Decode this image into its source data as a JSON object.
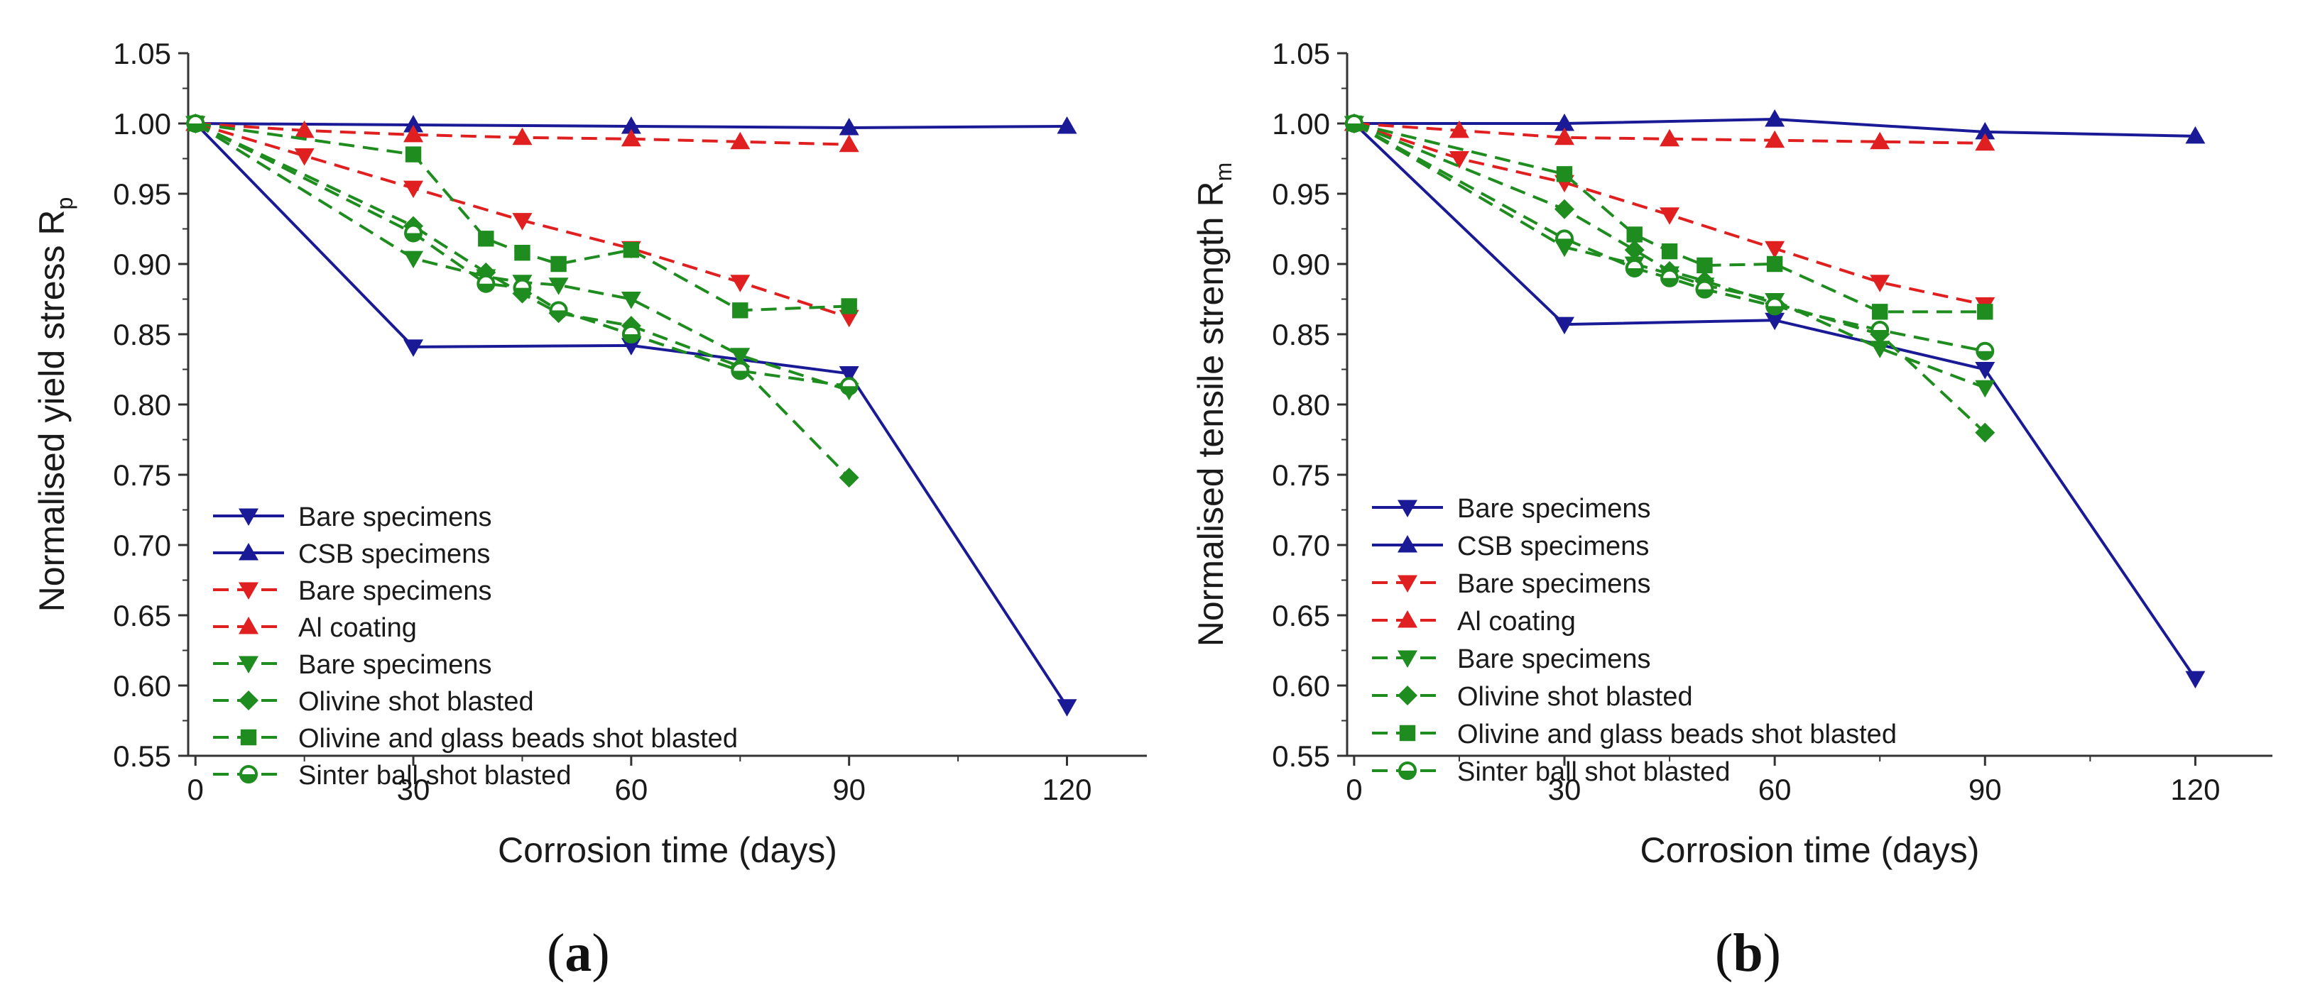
{
  "figure": {
    "panel_labels": [
      {
        "open": "(",
        "letter": "a",
        "close": ")"
      },
      {
        "open": "(",
        "letter": "b",
        "close": ")"
      }
    ]
  },
  "colors": {
    "blue": "#1a1a96",
    "red": "#e02020",
    "green": "#1e8c1e",
    "axis": "#333333"
  },
  "chart_data": [
    {
      "type": "line",
      "xlabel": "Corrosion time (days)",
      "ylabel": "Normalised yield stress R",
      "ylabel_sub": "p",
      "xlim": [
        -1,
        131
      ],
      "ylim": [
        0.55,
        1.05
      ],
      "xticks": [
        "0",
        "30",
        "60",
        "90",
        "120"
      ],
      "yticks": [
        "0.55",
        "0.60",
        "0.65",
        "0.70",
        "0.75",
        "0.80",
        "0.85",
        "0.90",
        "0.95",
        "1.00",
        "1.05"
      ],
      "legend": {
        "position": "lower-left"
      },
      "series": [
        {
          "name": "Bare specimens",
          "color": "blue",
          "dash": "solid",
          "marker": "tri-down",
          "x": [
            0,
            30,
            60,
            90,
            120
          ],
          "y": [
            1.0,
            0.841,
            0.842,
            0.822,
            0.585
          ]
        },
        {
          "name": "CSB specimens",
          "color": "blue",
          "dash": "solid",
          "marker": "tri-up",
          "x": [
            0,
            30,
            60,
            90,
            120
          ],
          "y": [
            1.0,
            0.999,
            0.998,
            0.997,
            0.998
          ]
        },
        {
          "name": "Bare specimens",
          "color": "red",
          "dash": "dashed",
          "marker": "tri-down",
          "x": [
            0,
            15,
            30,
            45,
            60,
            75,
            90
          ],
          "y": [
            1.0,
            0.977,
            0.954,
            0.931,
            0.911,
            0.887,
            0.862
          ]
        },
        {
          "name": "Al coating",
          "color": "red",
          "dash": "dashed",
          "marker": "tri-up",
          "x": [
            0,
            15,
            30,
            45,
            60,
            75,
            90
          ],
          "y": [
            1.0,
            0.995,
            0.992,
            0.99,
            0.989,
            0.987,
            0.985
          ]
        },
        {
          "name": "Bare specimens",
          "color": "green",
          "dash": "dashed",
          "marker": "tri-down",
          "x": [
            0,
            30,
            40,
            45,
            50,
            60,
            75,
            90
          ],
          "y": [
            1.0,
            0.904,
            0.891,
            0.887,
            0.885,
            0.875,
            0.835,
            0.81
          ]
        },
        {
          "name": "Olivine shot blasted",
          "color": "green",
          "dash": "dashed",
          "marker": "diamond",
          "x": [
            0,
            30,
            40,
            45,
            50,
            60,
            75,
            90
          ],
          "y": [
            1.0,
            0.927,
            0.894,
            0.879,
            0.865,
            0.856,
            0.827,
            0.748
          ]
        },
        {
          "name": "Olivine and glass beads shot blasted",
          "color": "green",
          "dash": "dashed",
          "marker": "square",
          "x": [
            0,
            30,
            40,
            45,
            50,
            60,
            75,
            90
          ],
          "y": [
            1.0,
            0.978,
            0.918,
            0.908,
            0.9,
            0.91,
            0.867,
            0.87
          ]
        },
        {
          "name": "Sinter ball shot blasted",
          "color": "green",
          "dash": "dashed",
          "marker": "half-circle",
          "x": [
            0,
            30,
            40,
            45,
            50,
            60,
            75,
            90
          ],
          "y": [
            1.0,
            0.922,
            0.886,
            0.883,
            0.867,
            0.85,
            0.824,
            0.813
          ]
        }
      ]
    },
    {
      "type": "line",
      "xlabel": "Corrosion time (days)",
      "ylabel": "Normalised tensile strength R",
      "ylabel_sub": "m",
      "xlim": [
        -1,
        131
      ],
      "ylim": [
        0.55,
        1.05
      ],
      "xticks": [
        "0",
        "30",
        "60",
        "90",
        "120"
      ],
      "yticks": [
        "0.55",
        "0.60",
        "0.65",
        "0.70",
        "0.75",
        "0.80",
        "0.85",
        "0.90",
        "0.95",
        "1.00",
        "1.05"
      ],
      "legend": {
        "position": "lower-left"
      },
      "series": [
        {
          "name": "Bare specimens",
          "color": "blue",
          "dash": "solid",
          "marker": "tri-down",
          "x": [
            0,
            30,
            60,
            90,
            120
          ],
          "y": [
            1.0,
            0.857,
            0.86,
            0.825,
            0.605
          ]
        },
        {
          "name": "CSB specimens",
          "color": "blue",
          "dash": "solid",
          "marker": "tri-up",
          "x": [
            0,
            30,
            60,
            90,
            120
          ],
          "y": [
            1.0,
            1.0,
            1.003,
            0.994,
            0.991
          ]
        },
        {
          "name": "Bare specimens",
          "color": "red",
          "dash": "dashed",
          "marker": "tri-down",
          "x": [
            0,
            15,
            30,
            45,
            60,
            75,
            90
          ],
          "y": [
            1.0,
            0.975,
            0.958,
            0.935,
            0.911,
            0.887,
            0.871
          ]
        },
        {
          "name": "Al coating",
          "color": "red",
          "dash": "dashed",
          "marker": "tri-up",
          "x": [
            0,
            15,
            30,
            45,
            60,
            75,
            90
          ],
          "y": [
            1.0,
            0.995,
            0.99,
            0.989,
            0.988,
            0.987,
            0.986
          ]
        },
        {
          "name": "Bare specimens",
          "color": "green",
          "dash": "dashed",
          "marker": "tri-down",
          "x": [
            0,
            30,
            40,
            45,
            50,
            60,
            75,
            90
          ],
          "y": [
            1.0,
            0.912,
            0.9,
            0.893,
            0.885,
            0.874,
            0.84,
            0.812
          ]
        },
        {
          "name": "Olivine shot blasted",
          "color": "green",
          "dash": "dashed",
          "marker": "diamond",
          "x": [
            0,
            30,
            40,
            45,
            50,
            60,
            75,
            90
          ],
          "y": [
            1.0,
            0.939,
            0.91,
            0.895,
            0.888,
            0.872,
            0.85,
            0.78
          ]
        },
        {
          "name": "Olivine and glass beads shot blasted",
          "color": "green",
          "dash": "dashed",
          "marker": "square",
          "x": [
            0,
            30,
            40,
            45,
            50,
            60,
            75,
            90
          ],
          "y": [
            1.0,
            0.964,
            0.921,
            0.909,
            0.899,
            0.9,
            0.866,
            0.866
          ]
        },
        {
          "name": "Sinter ball shot blasted",
          "color": "green",
          "dash": "dashed",
          "marker": "half-circle",
          "x": [
            0,
            30,
            40,
            45,
            50,
            60,
            75,
            90
          ],
          "y": [
            1.0,
            0.918,
            0.897,
            0.89,
            0.882,
            0.87,
            0.853,
            0.838
          ]
        }
      ]
    }
  ]
}
